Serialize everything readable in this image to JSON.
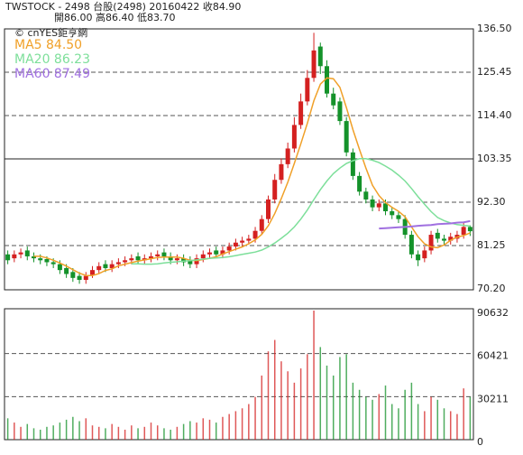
{
  "chart_data": {
    "type": "candlestick",
    "title": "TWSTOCK - 2498 台股(2498) 20160422 收84.90",
    "subtitle": "開86.00 高86.40 低83.70",
    "source": "© cnYES鉅亨網",
    "up_color": "#d42020",
    "down_color": "#14922a",
    "open": [
      79,
      78,
      79,
      80,
      78.5,
      78,
      77.8,
      77,
      76.5,
      75.5,
      74.5,
      73.5,
      72.5,
      73.8,
      75,
      76.5,
      75.5,
      76.5,
      77,
      77.5,
      78.5,
      77.5,
      78,
      78.5,
      79.5,
      78.5,
      77.5,
      78,
      77.5,
      76.5,
      78,
      79,
      80,
      79,
      80,
      81,
      82,
      82.5,
      83,
      85,
      88,
      93,
      98,
      102,
      106,
      112,
      118,
      124,
      132,
      127,
      120,
      118,
      113,
      105,
      99,
      95,
      93,
      91,
      92,
      90,
      89,
      88,
      84,
      79,
      78,
      80,
      84.5,
      83,
      82.5,
      83,
      84,
      86
    ],
    "high": [
      80,
      80,
      80.5,
      81,
      79.5,
      79,
      78.5,
      78,
      77.5,
      76.5,
      75.5,
      74.5,
      74.5,
      76,
      77,
      77.5,
      77.5,
      78,
      78.5,
      79,
      79.5,
      79,
      79.5,
      80,
      80.5,
      79.5,
      79,
      79,
      78.5,
      79,
      80,
      80.5,
      81,
      81,
      82,
      83,
      83.5,
      84,
      86,
      89,
      94,
      99.5,
      103.5,
      107.5,
      114,
      120,
      126,
      135.5,
      133,
      128.5,
      121.5,
      119,
      114,
      106,
      100,
      96,
      94,
      93,
      93,
      91,
      90,
      89,
      85,
      80,
      81,
      85,
      85.5,
      84,
      84.5,
      85,
      87,
      86.4
    ],
    "low": [
      76.5,
      77,
      78,
      77.5,
      77,
      76.5,
      76,
      75.5,
      74,
      73,
      72,
      71.5,
      71.5,
      73,
      74,
      74.5,
      74.5,
      75.5,
      76,
      76.5,
      76.5,
      76.5,
      77,
      77.5,
      77.5,
      76.5,
      76.5,
      76,
      75.5,
      75.5,
      77,
      78,
      78,
      78,
      79,
      80,
      81,
      81.5,
      82,
      84,
      87,
      92,
      97,
      101,
      105,
      111,
      117,
      123,
      125,
      119,
      116,
      112,
      104,
      98,
      94,
      92,
      90,
      90,
      89,
      88,
      87,
      83,
      78,
      76,
      77,
      79,
      82,
      81.5,
      81.5,
      82,
      83,
      83.7
    ],
    "close": [
      77.5,
      79,
      79.5,
      78.5,
      78,
      77.5,
      77,
      76.5,
      75,
      74,
      73,
      72.5,
      73.5,
      75,
      76,
      75.5,
      76.5,
      77,
      77.5,
      78,
      77.5,
      78,
      78.5,
      79,
      78.5,
      77.5,
      78,
      77,
      76.5,
      78,
      79,
      79.5,
      79,
      80,
      81,
      82,
      82.5,
      83,
      85,
      88,
      93,
      98,
      102,
      106,
      112,
      118,
      124,
      131,
      127,
      120,
      117,
      113,
      105,
      99,
      95,
      93,
      91,
      92,
      90,
      89,
      88,
      84,
      79,
      77.5,
      80,
      84,
      83,
      82.5,
      83.5,
      84,
      86,
      84.9
    ],
    "series": [
      {
        "name": "MA5 84.50",
        "color": "#f0a028",
        "values": [
          null,
          null,
          null,
          null,
          78.5,
          78.5,
          78.1,
          77.5,
          76.8,
          76,
          75.1,
          74.2,
          73.6,
          73.6,
          74.1,
          74.9,
          75.3,
          76.1,
          76.5,
          76.9,
          77.3,
          77.6,
          77.9,
          78.2,
          78.3,
          78.3,
          78.3,
          78,
          77.5,
          77.4,
          77.7,
          78,
          78.4,
          79.1,
          79.7,
          80.3,
          80.9,
          81.7,
          82.7,
          84.1,
          86.3,
          89.4,
          93.2,
          97.4,
          102.2,
          107.2,
          112.4,
          118.2,
          122.4,
          124,
          123.8,
          121.6,
          116.4,
          110.8,
          105.8,
          101,
          96.6,
          94,
          92.2,
          91,
          90,
          88.6,
          86,
          83.5,
          81.7,
          80.9,
          80.7,
          81.4,
          82.6,
          83.4,
          83.8,
          84.5
        ]
      },
      {
        "name": "MA20 86.23",
        "color": "#7ddf9a",
        "values": [
          null,
          null,
          null,
          null,
          null,
          null,
          null,
          null,
          null,
          null,
          null,
          null,
          null,
          null,
          null,
          null,
          null,
          null,
          null,
          76.6,
          76.6,
          76.5,
          76.5,
          76.6,
          76.8,
          77,
          77.1,
          77.3,
          77.4,
          77.6,
          77.8,
          78,
          78.1,
          78.2,
          78.4,
          78.7,
          79,
          79.3,
          79.6,
          80.1,
          80.9,
          81.9,
          83.1,
          84.4,
          86,
          88,
          90.3,
          93,
          95.5,
          97.7,
          99.6,
          101,
          102.2,
          102.9,
          103.4,
          103.4,
          103,
          102.4,
          101.5,
          100.5,
          99.2,
          97.7,
          95.8,
          93.7,
          91.8,
          89.9,
          88.4,
          87.6,
          87,
          86.6,
          86.4,
          86.23
        ]
      },
      {
        "name": "MA60 87.49",
        "color": "#a070e0",
        "values": [
          null,
          null,
          null,
          null,
          null,
          null,
          null,
          null,
          null,
          null,
          null,
          null,
          null,
          null,
          null,
          null,
          null,
          null,
          null,
          null,
          null,
          null,
          null,
          null,
          null,
          null,
          null,
          null,
          null,
          null,
          null,
          null,
          null,
          null,
          null,
          null,
          null,
          null,
          null,
          null,
          null,
          null,
          null,
          null,
          null,
          null,
          null,
          null,
          null,
          null,
          null,
          null,
          null,
          null,
          null,
          null,
          null,
          85.6,
          85.7,
          85.8,
          85.9,
          86,
          86.1,
          86.3,
          86.4,
          86.5,
          86.7,
          86.8,
          86.9,
          87.1,
          87.2,
          87.49
        ]
      }
    ],
    "ylim": [
      70.2,
      136.5
    ],
    "yticks": [
      {
        "value": 136.5,
        "label": "136.50"
      },
      125.45,
      {
        "value": 114.4,
        "label": "114.40"
      },
      103.35,
      {
        "value": 92.3,
        "label": "92.30"
      },
      81.25,
      {
        "value": 70.2,
        "label": "70.20"
      }
    ],
    "volume": {
      "values": [
        15000,
        12000,
        9000,
        11000,
        8000,
        7000,
        9000,
        10000,
        12000,
        14000,
        16000,
        13000,
        15000,
        10000,
        9000,
        8000,
        11000,
        9000,
        7000,
        10000,
        8000,
        9000,
        12000,
        10000,
        8000,
        7000,
        9000,
        11000,
        13000,
        12000,
        15000,
        14000,
        12000,
        16000,
        18000,
        20000,
        22000,
        25000,
        30000,
        45000,
        62000,
        70000,
        55000,
        48000,
        40000,
        50000,
        60000,
        90632,
        65000,
        52000,
        45000,
        58000,
        60000,
        40000,
        35000,
        30000,
        28000,
        32000,
        38000,
        25000,
        22000,
        35000,
        40000,
        25000,
        20000,
        30000,
        28000,
        22000,
        20000,
        18000,
        36000,
        30000
      ],
      "ylim": [
        0,
        90632
      ],
      "yticks": [
        90632,
        60421,
        30211,
        0
      ]
    }
  }
}
